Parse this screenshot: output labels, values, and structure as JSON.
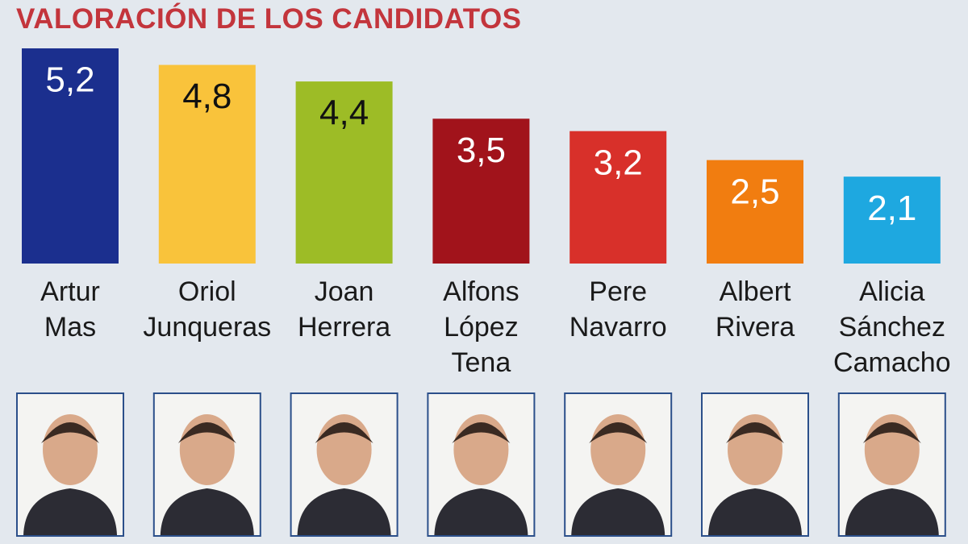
{
  "chart_data": {
    "type": "bar",
    "title": "VALORACIÓN DE LOS CANDIDATOS",
    "categories": [
      "Artur\nMas",
      "Oriol\nJunqueras",
      "Joan\nHerrera",
      "Alfons\nLópez\nTena",
      "Pere\nNavarro",
      "Albert\nRivera",
      "Alicia\nSánchez\nCamacho"
    ],
    "values": [
      5.2,
      4.8,
      4.4,
      3.5,
      3.2,
      2.5,
      2.1
    ],
    "value_labels": [
      "5,2",
      "4,8",
      "4,4",
      "3,5",
      "3,2",
      "2,5",
      "2,1"
    ],
    "colors": [
      "#1b2f8e",
      "#f9c33b",
      "#9dbc26",
      "#a1131b",
      "#d8302a",
      "#f17d10",
      "#1ea8e0"
    ]
  }
}
